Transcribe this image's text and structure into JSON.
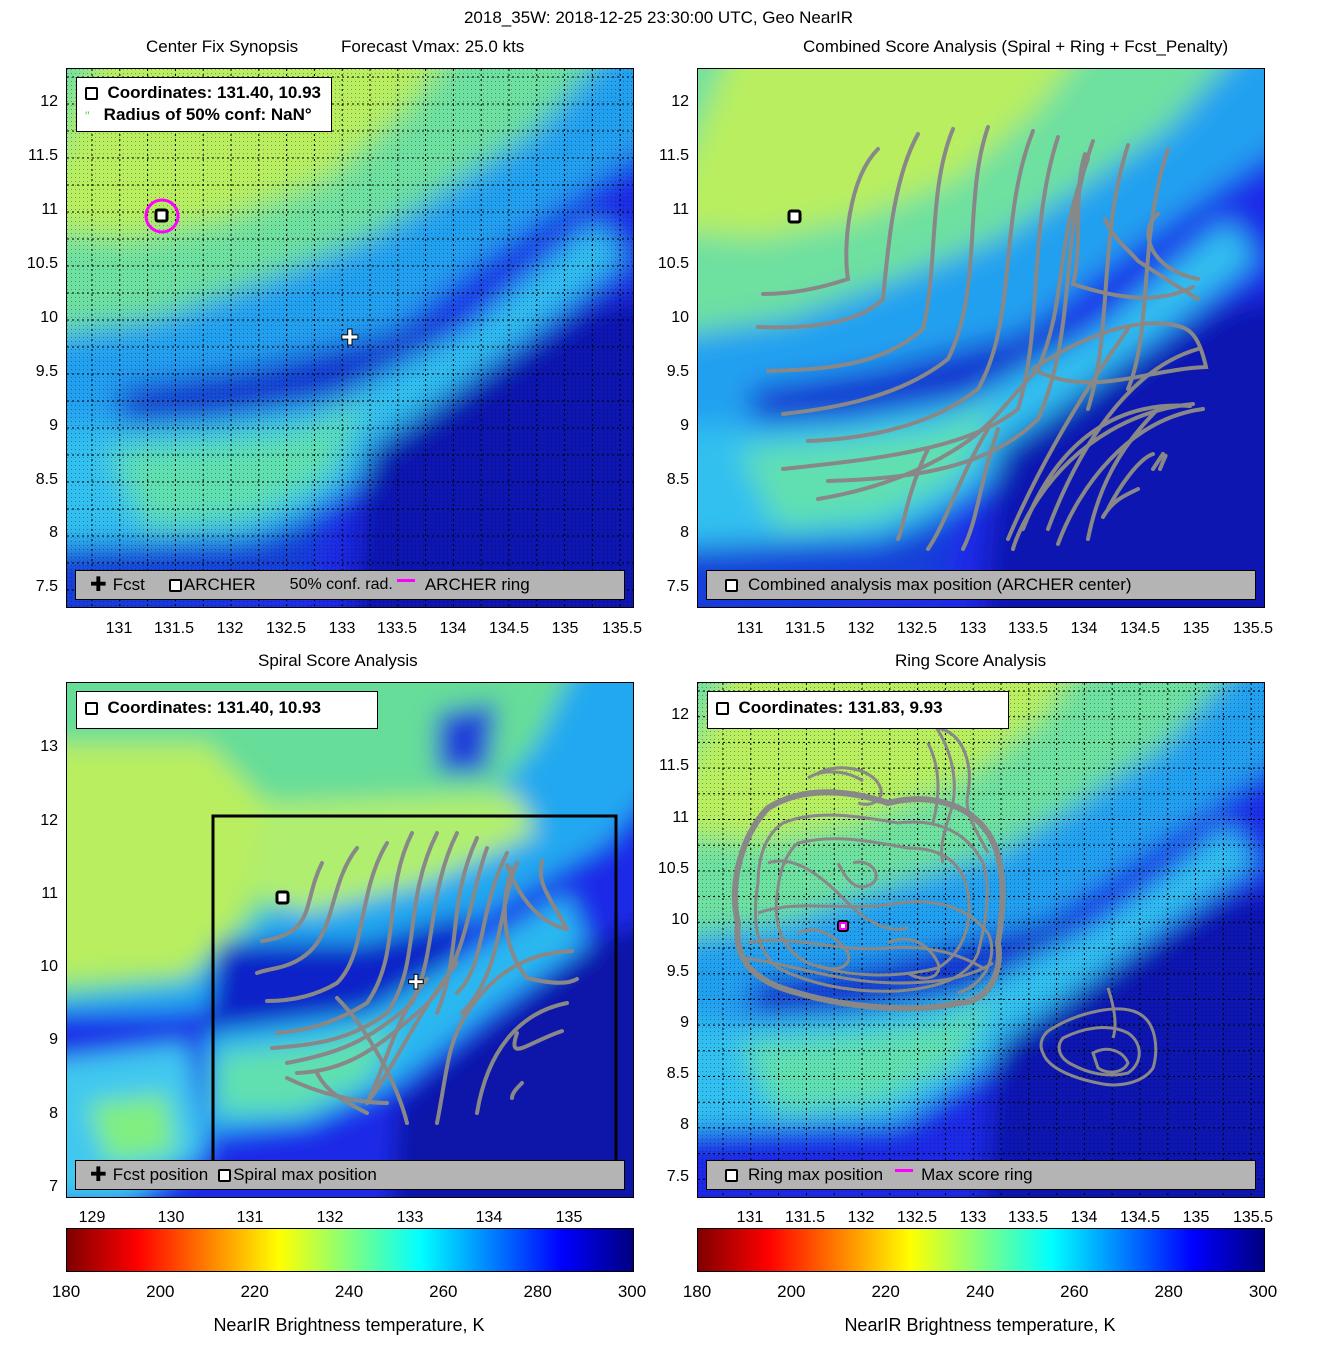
{
  "figure_title": "2018_35W: 2018-12-25 23:30:00 UTC, Geo NearIR",
  "colorbar": {
    "ticks": [
      180,
      200,
      220,
      240,
      260,
      280,
      300
    ],
    "label": "NearIR Brightness temperature, K",
    "min": 180,
    "max": 300,
    "colormap": [
      "#800000",
      "#ff0000",
      "#ff8000",
      "#ffff00",
      "#80ff80",
      "#00ffff",
      "#0080ff",
      "#0000ff",
      "#000080"
    ]
  },
  "panels": {
    "synopsis": {
      "title_left": "Center Fix Synopsis",
      "title_right": "Forecast Vmax: 25.0 kts",
      "coords_label": "Coordinates: 131.40, 10.93",
      "radius_label": "Radius of 50% conf: NaN°",
      "legend": {
        "fcst": "Fcst",
        "archer": "ARCHER",
        "conf": "50% conf. rad.",
        "ring": "ARCHER ring"
      },
      "xticks": [
        "131",
        "131.5",
        "132",
        "132.5",
        "133",
        "133.5",
        "134",
        "134.5",
        "135",
        "135.5"
      ],
      "yticks": [
        "12",
        "11.5",
        "11",
        "10.5",
        "10",
        "9.5",
        "9",
        "8.5",
        "8",
        "7.5"
      ]
    },
    "combined": {
      "title": "Combined Score Analysis (Spiral + Ring + Fcst_Penalty)",
      "legend": "Combined analysis max position (ARCHER center)",
      "xticks": [
        "131",
        "131.5",
        "132",
        "132.5",
        "133",
        "133.5",
        "134",
        "134.5",
        "135",
        "135.5"
      ],
      "yticks": [
        "12",
        "11.5",
        "11",
        "10.5",
        "10",
        "9.5",
        "9",
        "8.5",
        "8",
        "7.5"
      ]
    },
    "spiral": {
      "title": "Spiral Score Analysis",
      "coords_label": "Coordinates: 131.40, 10.93",
      "legend": {
        "fcst": "Fcst position",
        "spiral": "Spiral max position"
      },
      "xticks": [
        "129",
        "130",
        "131",
        "132",
        "133",
        "134",
        "135"
      ],
      "yticks": [
        "13",
        "12",
        "11",
        "10",
        "9",
        "8",
        "7"
      ]
    },
    "ring": {
      "title": "Ring Score Analysis",
      "coords_label": "Coordinates: 131.83, 9.93",
      "legend": {
        "ring_max": "Ring max position",
        "max_ring": "Max score ring"
      },
      "xticks": [
        "131",
        "131.5",
        "132",
        "132.5",
        "133",
        "133.5",
        "134",
        "134.5",
        "135",
        "135.5"
      ],
      "yticks": [
        "12",
        "11.5",
        "11",
        "10.5",
        "10",
        "9.5",
        "9",
        "8.5",
        "8",
        "7.5"
      ]
    }
  },
  "chart_data": [
    {
      "type": "heatmap",
      "title": "Center Fix Synopsis",
      "subtitle": "Forecast Vmax: 25.0 kts",
      "xlim": [
        130.55,
        135.6
      ],
      "ylim": [
        7.3,
        12.3
      ],
      "grid": true,
      "points": [
        {
          "name": "ARCHER",
          "x": 131.4,
          "y": 10.93
        },
        {
          "name": "Fcst",
          "x": 133.05,
          "y": 9.82
        }
      ],
      "legend_position": "bottom"
    },
    {
      "type": "heatmap",
      "title": "Combined Score Analysis (Spiral + Ring + Fcst_Penalty)",
      "xlim": [
        130.55,
        135.6
      ],
      "ylim": [
        7.3,
        12.3
      ],
      "points": [
        {
          "name": "ARCHER",
          "x": 131.4,
          "y": 10.93
        }
      ],
      "legend_position": "bottom"
    },
    {
      "type": "heatmap",
      "title": "Spiral Score Analysis",
      "xlim": [
        128.6,
        135.9
      ],
      "ylim": [
        6.9,
        13.9
      ],
      "points": [
        {
          "name": "Spiral max position",
          "x": 131.4,
          "y": 10.93
        },
        {
          "name": "Fcst position",
          "x": 133.05,
          "y": 9.82
        }
      ],
      "legend_position": "bottom"
    },
    {
      "type": "heatmap",
      "title": "Ring Score Analysis",
      "xlim": [
        130.55,
        135.6
      ],
      "ylim": [
        7.3,
        12.3
      ],
      "points": [
        {
          "name": "Ring max position",
          "x": 131.83,
          "y": 9.93
        }
      ],
      "legend_position": "bottom"
    }
  ]
}
